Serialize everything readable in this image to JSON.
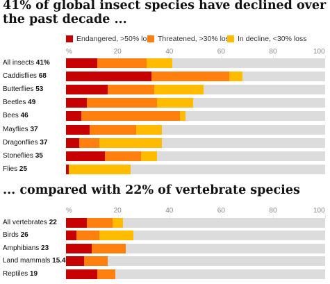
{
  "titles": {
    "insects": "41% of global insect species have declined over the past decade ...",
    "vertebrates": "... compared with 22% of vertebrate species"
  },
  "legend": [
    {
      "label": "Endangered, >50% loss",
      "color": "#c70000"
    },
    {
      "label": "Threatened, >30% loss",
      "color": "#ff7f0f"
    },
    {
      "label": "In decline, <30% loss",
      "color": "#ffbb00"
    }
  ],
  "colors": {
    "track": "#dcdcdc"
  },
  "chart_data": [
    {
      "type": "bar",
      "stacked": true,
      "orientation": "horizontal",
      "xlim": [
        0,
        100
      ],
      "ticks": [
        "%",
        "20",
        "40",
        "60",
        "80",
        "100"
      ],
      "categories": [
        "All insects",
        "Caddisflies",
        "Butterflies",
        "Beetles",
        "Bees",
        "Mayflies",
        "Dragonflies",
        "Stoneflies",
        "Flies"
      ],
      "totals": [
        "41%",
        "68",
        "53",
        "49",
        "46",
        "37",
        "37",
        "35",
        "25"
      ],
      "series": [
        {
          "name": "Endangered, >50% loss",
          "values": [
            12,
            33,
            16,
            8,
            6,
            9,
            5,
            15,
            1
          ]
        },
        {
          "name": "Threatened, >30% loss",
          "values": [
            19,
            30,
            18,
            27,
            38,
            18,
            8,
            14,
            0
          ]
        },
        {
          "name": "In decline, <30% loss",
          "values": [
            10,
            5,
            19,
            14,
            2,
            10,
            24,
            6,
            24
          ]
        }
      ]
    },
    {
      "type": "bar",
      "stacked": true,
      "orientation": "horizontal",
      "xlim": [
        0,
        100
      ],
      "ticks": [
        "%",
        "20",
        "40",
        "60",
        "80",
        "100"
      ],
      "categories": [
        "All vertebrates",
        "Birds",
        "Amphibians",
        "Land mammals",
        "Reptiles"
      ],
      "totals": [
        "22",
        "26",
        "23",
        "15.4",
        "19"
      ],
      "series": [
        {
          "name": "Endangered, >50% loss",
          "values": [
            8,
            4,
            10,
            7,
            12
          ]
        },
        {
          "name": "Threatened, >30% loss",
          "values": [
            10,
            9,
            13,
            9,
            7
          ]
        },
        {
          "name": "In decline, <30% loss",
          "values": [
            4,
            13,
            0,
            0,
            0
          ]
        }
      ]
    }
  ]
}
